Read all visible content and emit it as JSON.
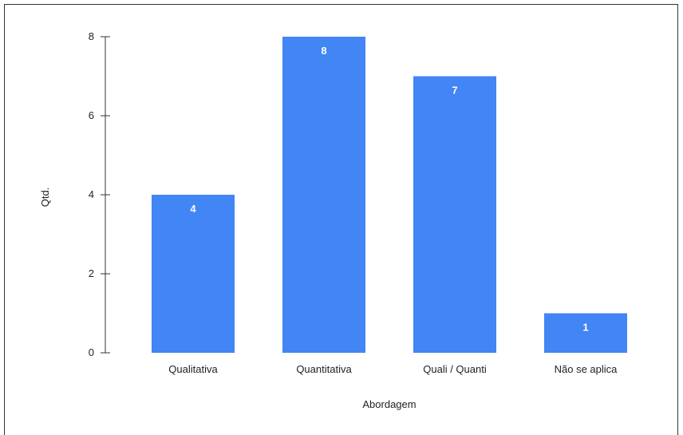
{
  "chart_data": {
    "type": "bar",
    "categories": [
      "Qualitativa",
      "Quantitativa",
      "Quali / Quanti",
      "Não se aplica"
    ],
    "values": [
      4,
      8,
      7,
      1
    ],
    "title": "",
    "xlabel": "Abordagem",
    "ylabel": "Qtd.",
    "ylim": [
      0,
      8
    ],
    "yticks": [
      0,
      2,
      4,
      6,
      8
    ],
    "grid": false,
    "legend": "none",
    "bar_color": "#4285f4",
    "data_labels": true
  }
}
